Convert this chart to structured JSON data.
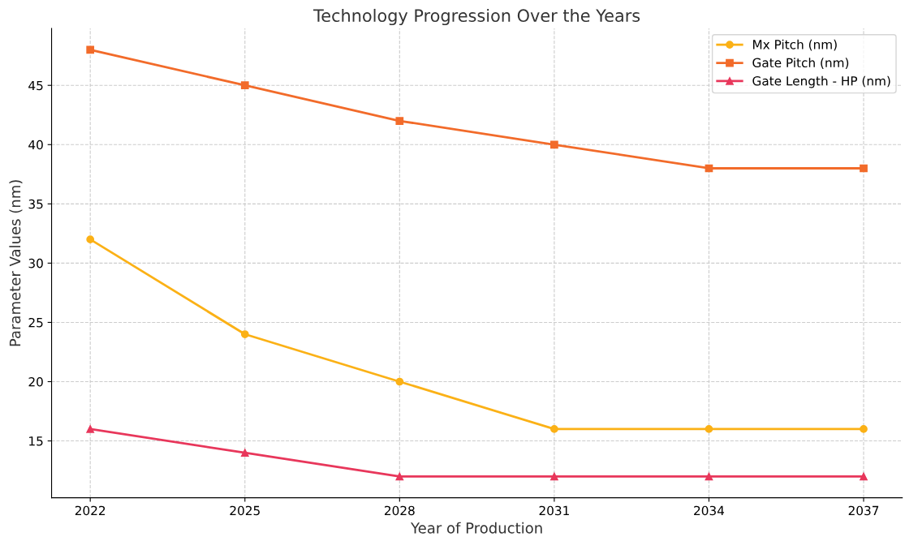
{
  "chart_data": {
    "type": "line",
    "title": "Technology Progression Over the Years",
    "xlabel": "Year of Production",
    "ylabel": "Parameter Values (nm)",
    "x": [
      2022,
      2025,
      2028,
      2031,
      2034,
      2037
    ],
    "series": [
      {
        "name": "Mx Pitch (nm)",
        "color": "#fbb116",
        "marker": "circle",
        "values": [
          32,
          24,
          20,
          16,
          16,
          16
        ]
      },
      {
        "name": "Gate Pitch (nm)",
        "color": "#f26b2a",
        "marker": "square",
        "values": [
          48,
          45,
          42,
          40,
          38,
          38
        ]
      },
      {
        "name": "Gate Length - HP (nm)",
        "color": "#e8375b",
        "marker": "triangle",
        "values": [
          16,
          14,
          12,
          12,
          12,
          12
        ]
      }
    ],
    "xlim": [
      2021.25,
      2037.75
    ],
    "xticks": [
      2022,
      2025,
      2028,
      2031,
      2034,
      2037
    ],
    "ylim": [
      10.2,
      49.8
    ],
    "yticks": [
      15,
      20,
      25,
      30,
      35,
      40,
      45
    ],
    "grid": true,
    "legend": "top right",
    "line_style": "solid"
  }
}
